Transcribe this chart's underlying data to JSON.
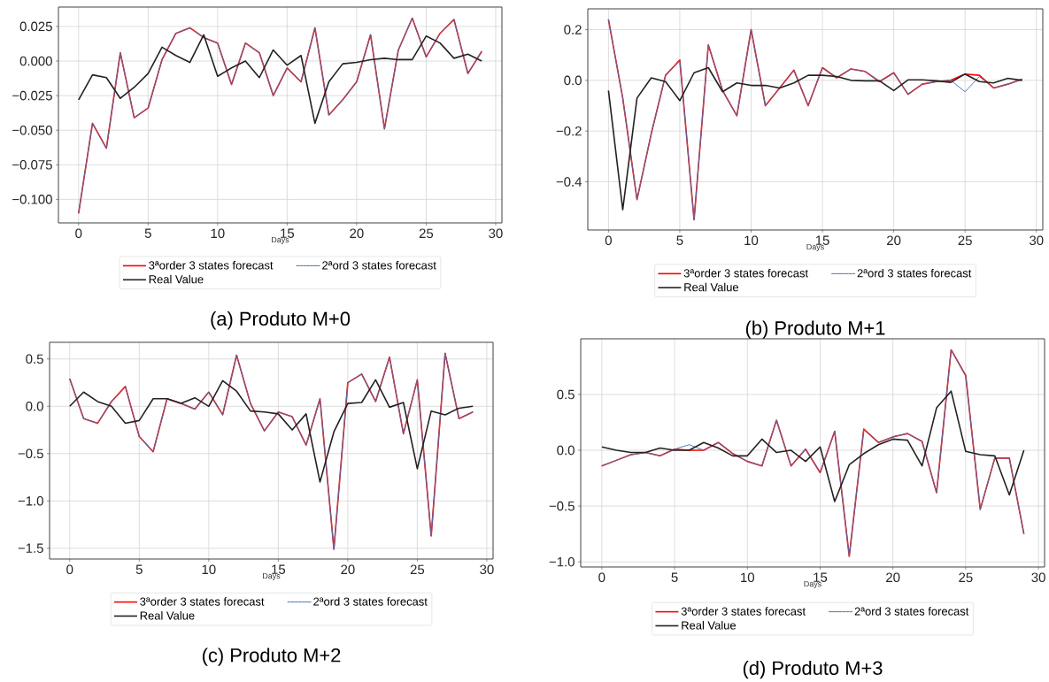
{
  "chart_data": [
    {
      "type": "line",
      "title": "(a) Produto M+0",
      "xlabel": "Days",
      "legend": "bottom",
      "grid": true,
      "xlim": [
        -1.45,
        30.45
      ],
      "ylim": [
        -0.117,
        0.039
      ],
      "xticks": [
        0,
        5,
        10,
        15,
        20,
        25,
        30
      ],
      "yticks": [
        {
          "value": -0.1,
          "label": "−0.100"
        },
        {
          "value": -0.075,
          "label": "−0.075"
        },
        {
          "value": -0.05,
          "label": "−0.050"
        },
        {
          "value": -0.025,
          "label": "−0.025"
        },
        {
          "value": 0,
          "label": "0.000"
        },
        {
          "value": 0.025,
          "label": "0.025"
        }
      ],
      "x": [
        0,
        1,
        2,
        3,
        4,
        5,
        6,
        7,
        8,
        9,
        10,
        11,
        12,
        13,
        14,
        15,
        16,
        17,
        18,
        19,
        20,
        21,
        22,
        23,
        24,
        25,
        26,
        27,
        28,
        29
      ],
      "series": [
        {
          "name": "3ªorder 3 states forecast",
          "color": "#ff0000",
          "line_style": "solid",
          "values": [
            -0.11,
            -0.045,
            -0.063,
            0.006,
            -0.041,
            -0.034,
            0.001,
            0.02,
            0.024,
            0.017,
            0.013,
            -0.017,
            0.013,
            0.006,
            -0.025,
            -0.005,
            -0.015,
            0.024,
            -0.039,
            -0.028,
            -0.015,
            0.019,
            -0.049,
            0.008,
            0.031,
            0.003,
            0.02,
            0.03,
            -0.009,
            0.007
          ]
        },
        {
          "name": "2ªord 3 states forecast",
          "color": "#4c72b0",
          "line_style": "dashed",
          "values": [
            -0.11,
            -0.045,
            -0.063,
            0.006,
            -0.041,
            -0.034,
            0.001,
            0.02,
            0.024,
            0.017,
            0.013,
            -0.017,
            0.013,
            0.006,
            -0.025,
            -0.005,
            -0.015,
            0.024,
            -0.039,
            -0.028,
            -0.015,
            0.019,
            -0.049,
            0.008,
            0.031,
            0.003,
            0.02,
            0.03,
            -0.009,
            0.007
          ]
        },
        {
          "name": "Real Value",
          "color": "#222222",
          "line_style": "solid",
          "values": [
            -0.028,
            -0.01,
            -0.012,
            -0.027,
            -0.019,
            -0.009,
            0.01,
            0.004,
            -0.001,
            0.019,
            -0.011,
            -0.005,
            0.0,
            -0.012,
            0.008,
            -0.003,
            0.004,
            -0.045,
            -0.015,
            -0.002,
            -0.001,
            0.001,
            0.002,
            0.001,
            0.001,
            0.018,
            0.013,
            0.002,
            0.005,
            0.0
          ]
        }
      ]
    },
    {
      "type": "line",
      "title": "(b) Produto M+1",
      "xlabel": "Days",
      "legend": "bottom",
      "grid": true,
      "xlim": [
        -1.45,
        30.45
      ],
      "ylim": [
        -0.59,
        0.282
      ],
      "xticks": [
        0,
        5,
        10,
        15,
        20,
        25,
        30
      ],
      "yticks": [
        {
          "value": -0.4,
          "label": "−0.4"
        },
        {
          "value": -0.2,
          "label": "−0.2"
        },
        {
          "value": 0,
          "label": "0.0"
        },
        {
          "value": 0.2,
          "label": "0.2"
        }
      ],
      "x": [
        0,
        1,
        2,
        3,
        4,
        5,
        6,
        7,
        8,
        9,
        10,
        11,
        12,
        13,
        14,
        15,
        16,
        17,
        18,
        19,
        20,
        21,
        22,
        23,
        24,
        25,
        26,
        27,
        28,
        29
      ],
      "series": [
        {
          "name": "3ªorder 3 states forecast",
          "color": "#ff0000",
          "line_style": "solid",
          "values": [
            0.24,
            -0.07,
            -0.47,
            -0.21,
            0.02,
            0.08,
            -0.55,
            0.14,
            -0.04,
            -0.14,
            0.2,
            -0.1,
            -0.03,
            0.04,
            -0.1,
            0.05,
            0.01,
            0.045,
            0.035,
            -0.005,
            0.03,
            -0.055,
            -0.015,
            -0.005,
            0.0,
            0.025,
            0.02,
            -0.03,
            -0.015,
            0.005
          ]
        },
        {
          "name": "2ªord 3 states forecast",
          "color": "#4c72b0",
          "line_style": "dashed",
          "values": [
            0.24,
            -0.07,
            -0.47,
            -0.21,
            0.02,
            0.08,
            -0.55,
            0.14,
            -0.04,
            -0.14,
            0.2,
            -0.1,
            -0.03,
            0.04,
            -0.1,
            0.05,
            0.01,
            0.045,
            0.035,
            -0.005,
            0.03,
            -0.055,
            -0.015,
            -0.005,
            0.0,
            -0.045,
            0.015,
            -0.03,
            -0.015,
            0.005
          ]
        },
        {
          "name": "Real Value",
          "color": "#222222",
          "line_style": "solid",
          "values": [
            -0.04,
            -0.51,
            -0.07,
            0.01,
            -0.005,
            -0.08,
            0.03,
            0.05,
            -0.045,
            -0.01,
            -0.02,
            -0.02,
            -0.03,
            -0.01,
            0.02,
            0.02,
            0.015,
            0.0,
            -0.002,
            -0.002,
            -0.04,
            0.002,
            0.002,
            -0.002,
            -0.008,
            0.025,
            -0.005,
            -0.01,
            0.008,
            0.0
          ]
        }
      ]
    },
    {
      "type": "line",
      "title": "(c) Produto M+2",
      "xlabel": "Days",
      "legend": "bottom",
      "grid": true,
      "xlim": [
        -1.45,
        30.45
      ],
      "ylim": [
        -1.614,
        0.676
      ],
      "xticks": [
        0,
        5,
        10,
        15,
        20,
        25,
        30
      ],
      "yticks": [
        {
          "value": -1.5,
          "label": "−1.5"
        },
        {
          "value": -1.0,
          "label": "−1.0"
        },
        {
          "value": -0.5,
          "label": "−0.5"
        },
        {
          "value": 0,
          "label": "0.0"
        },
        {
          "value": 0.5,
          "label": "0.5"
        }
      ],
      "x": [
        0,
        1,
        2,
        3,
        4,
        5,
        6,
        7,
        8,
        9,
        10,
        11,
        12,
        13,
        14,
        15,
        16,
        17,
        18,
        19,
        20,
        21,
        22,
        23,
        24,
        25,
        26,
        27,
        28,
        29
      ],
      "series": [
        {
          "name": "3ªorder 3 states forecast",
          "color": "#ff0000",
          "line_style": "solid",
          "values": [
            0.29,
            -0.13,
            -0.18,
            0.05,
            0.21,
            -0.32,
            -0.48,
            0.08,
            0.03,
            -0.03,
            0.15,
            -0.09,
            0.54,
            0.03,
            -0.26,
            -0.06,
            -0.11,
            -0.41,
            0.08,
            -1.51,
            0.25,
            0.34,
            0.05,
            0.52,
            -0.29,
            0.28,
            -1.37,
            0.56,
            -0.13,
            -0.06
          ]
        },
        {
          "name": "2ªord 3 states forecast",
          "color": "#4c72b0",
          "line_style": "dashed",
          "values": [
            0.29,
            -0.13,
            -0.18,
            0.05,
            0.21,
            -0.32,
            -0.48,
            0.08,
            0.03,
            -0.03,
            0.15,
            -0.09,
            0.54,
            0.03,
            -0.26,
            -0.06,
            -0.11,
            -0.41,
            0.08,
            -1.51,
            0.25,
            0.34,
            0.05,
            0.52,
            -0.29,
            0.28,
            -1.37,
            0.56,
            -0.13,
            -0.06
          ]
        },
        {
          "name": "Real Value",
          "color": "#222222",
          "line_style": "solid",
          "values": [
            0.0,
            0.15,
            0.05,
            0.0,
            -0.18,
            -0.15,
            0.08,
            0.08,
            0.03,
            0.09,
            0.0,
            0.27,
            0.16,
            -0.05,
            -0.06,
            -0.08,
            -0.25,
            -0.08,
            -0.8,
            -0.27,
            0.03,
            0.04,
            0.28,
            -0.01,
            0.04,
            -0.66,
            -0.05,
            -0.09,
            -0.02,
            0.0
          ]
        }
      ]
    },
    {
      "type": "line",
      "title": "(d) Produto M+3",
      "xlabel": "Days",
      "legend": "bottom",
      "grid": true,
      "xlim": [
        -1.45,
        30.42
      ],
      "ylim": [
        -1.046,
        0.999
      ],
      "xticks": [
        0,
        5,
        10,
        15,
        20,
        25,
        30
      ],
      "yticks": [
        {
          "value": -1.0,
          "label": "−1.0"
        },
        {
          "value": -0.5,
          "label": "−0.5"
        },
        {
          "value": 0,
          "label": "0.0"
        },
        {
          "value": 0.5,
          "label": "0.5"
        }
      ],
      "x": [
        0,
        1,
        2,
        3,
        4,
        5,
        6,
        7,
        8,
        9,
        10,
        11,
        12,
        13,
        14,
        15,
        16,
        17,
        18,
        19,
        20,
        21,
        22,
        23,
        24,
        25,
        26,
        27,
        28,
        29
      ],
      "series": [
        {
          "name": "3ªorder 3 states forecast",
          "color": "#ff0000",
          "line_style": "solid",
          "values": [
            -0.14,
            -0.09,
            -0.04,
            -0.02,
            -0.05,
            0.01,
            0.0,
            0.0,
            0.07,
            -0.03,
            -0.1,
            -0.14,
            0.27,
            -0.14,
            0.01,
            -0.2,
            0.17,
            -0.95,
            0.19,
            0.07,
            0.12,
            0.15,
            0.08,
            -0.38,
            0.9,
            0.67,
            -0.53,
            -0.07,
            -0.07,
            -0.75
          ]
        },
        {
          "name": "2ªord 3 states forecast",
          "color": "#4c72b0",
          "line_style": "dashed",
          "values": [
            -0.14,
            -0.09,
            -0.04,
            -0.02,
            -0.05,
            0.01,
            0.05,
            0.0,
            0.07,
            -0.03,
            -0.1,
            -0.14,
            0.27,
            -0.14,
            0.01,
            -0.2,
            0.17,
            -0.95,
            0.19,
            0.07,
            0.12,
            0.15,
            0.08,
            -0.38,
            0.9,
            0.67,
            -0.53,
            -0.07,
            -0.07,
            -0.75
          ]
        },
        {
          "name": "Real Value",
          "color": "#222222",
          "line_style": "solid",
          "values": [
            0.03,
            0.0,
            -0.02,
            -0.02,
            0.02,
            0.0,
            0.0,
            0.07,
            0.02,
            -0.05,
            -0.05,
            0.1,
            -0.02,
            0.0,
            -0.1,
            0.03,
            -0.46,
            -0.13,
            -0.03,
            0.05,
            0.1,
            0.09,
            -0.14,
            0.38,
            0.53,
            -0.01,
            -0.04,
            -0.05,
            -0.4,
            0.0
          ]
        }
      ]
    }
  ]
}
